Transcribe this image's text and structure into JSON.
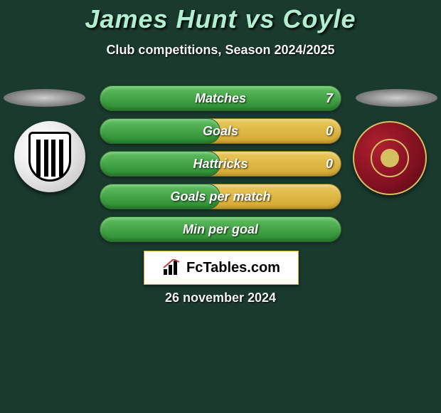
{
  "title": "James Hunt vs Coyle",
  "subtitle": "Club competitions, Season 2024/2025",
  "date": "26 november 2024",
  "brand": "FcTables.com",
  "colors": {
    "background": "#1a3a2e",
    "title_text": "#b0f0d0",
    "bar_track_top": "#e8c85a",
    "bar_track_bottom": "#d4a830",
    "bar_fill_top": "#5fbf60",
    "bar_fill_bottom": "#2a8a30",
    "white": "#ffffff"
  },
  "stats": [
    {
      "label": "Matches",
      "right_value": "7",
      "fill_ratio": 1.0
    },
    {
      "label": "Goals",
      "right_value": "0",
      "fill_ratio": 0.5
    },
    {
      "label": "Hattricks",
      "right_value": "0",
      "fill_ratio": 0.5
    },
    {
      "label": "Goals per match",
      "right_value": "",
      "fill_ratio": 0.5
    },
    {
      "label": "Min per goal",
      "right_value": "",
      "fill_ratio": 1.0
    }
  ]
}
